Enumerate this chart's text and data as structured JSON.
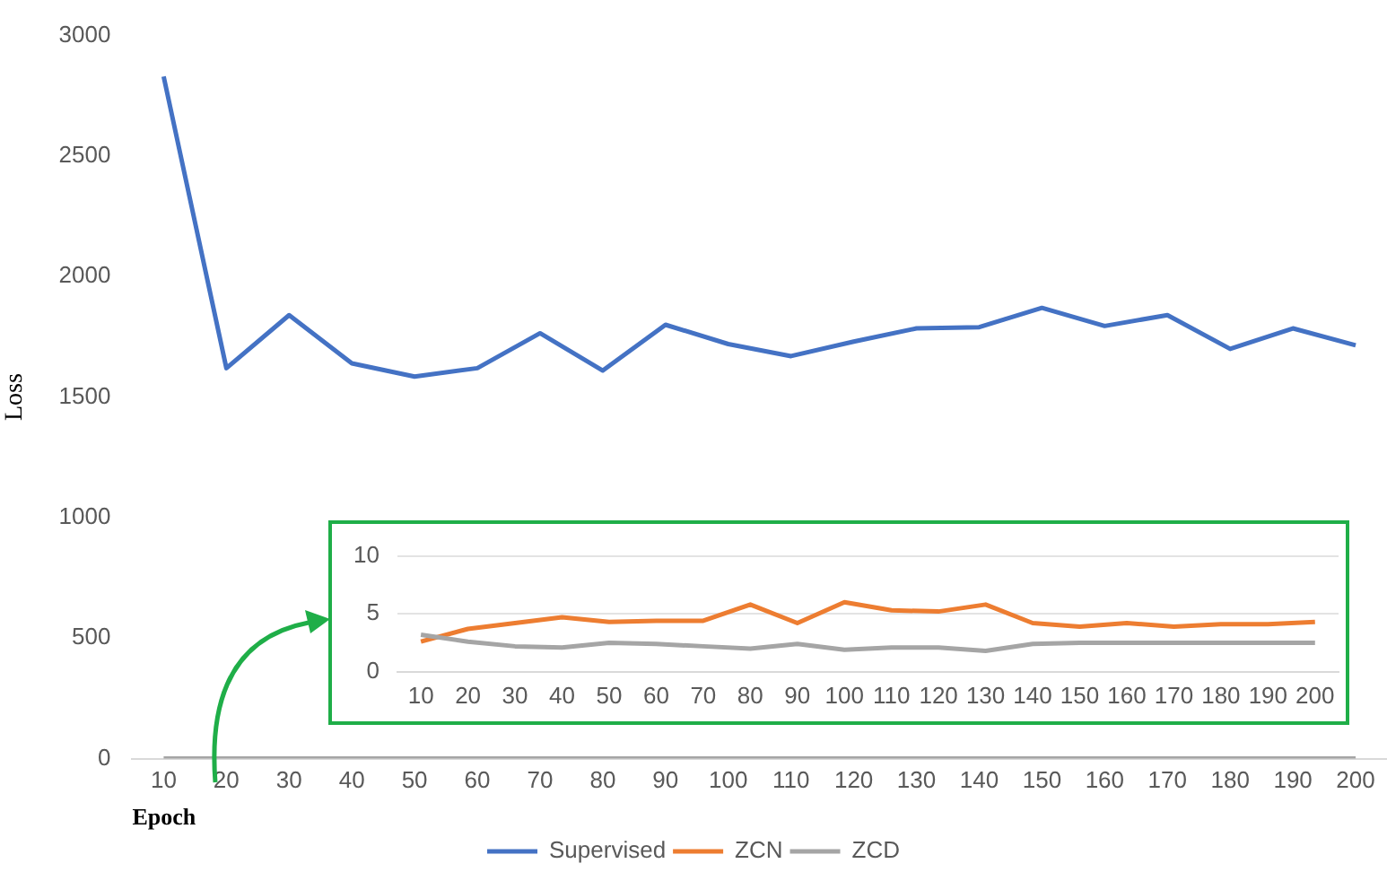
{
  "chart_data": [
    {
      "type": "line",
      "ylabel": "Loss",
      "xlabel": "Epoch",
      "categories": [
        "10",
        "20",
        "30",
        "40",
        "50",
        "60",
        "70",
        "80",
        "90",
        "100",
        "110",
        "120",
        "130",
        "140",
        "150",
        "160",
        "170",
        "180",
        "190",
        "200"
      ],
      "series": [
        {
          "name": "Supervised",
          "color": "#4472c4",
          "values": [
            2830,
            1620,
            1840,
            1640,
            1585,
            1620,
            1765,
            1610,
            1800,
            1720,
            1670,
            1730,
            1785,
            1790,
            1870,
            1795,
            1840,
            1700,
            1785,
            1715
          ]
        },
        {
          "name": "ZCN",
          "color": "#ed7d31",
          "values": [
            null,
            null,
            null,
            null,
            null,
            null,
            null,
            null,
            null,
            null,
            null,
            null,
            null,
            null,
            null,
            null,
            null,
            null,
            null,
            null
          ]
        },
        {
          "name": "ZCD",
          "color": "#a5a5a5",
          "values": [
            0,
            0,
            0,
            0,
            0,
            0,
            0,
            0,
            0,
            0,
            0,
            0,
            0,
            0,
            0,
            0,
            0,
            0,
            0,
            0
          ]
        }
      ],
      "ylim": [
        0,
        3000
      ],
      "yticks": [
        0,
        500,
        1000,
        1500,
        2000,
        2500,
        3000
      ],
      "grid": false,
      "legend": "bottom",
      "marker": "none",
      "line_style": "solid"
    },
    {
      "type": "line",
      "categories": [
        "10",
        "20",
        "30",
        "40",
        "50",
        "60",
        "70",
        "80",
        "90",
        "100",
        "110",
        "120",
        "130",
        "140",
        "150",
        "160",
        "170",
        "180",
        "190",
        "200"
      ],
      "series": [
        {
          "color": "#ed7d31",
          "values": [
            2.6,
            3.7,
            4.2,
            4.7,
            4.3,
            4.4,
            4.4,
            5.8,
            4.2,
            6.0,
            5.3,
            5.2,
            5.8,
            4.2,
            3.9,
            4.2,
            3.9,
            4.1,
            4.1,
            4.3
          ]
        },
        {
          "color": "#a5a5a5",
          "values": [
            3.2,
            2.6,
            2.2,
            2.1,
            2.5,
            2.4,
            2.2,
            2.0,
            2.4,
            1.9,
            2.1,
            2.1,
            1.8,
            2.4,
            2.5,
            2.5,
            2.5,
            2.5,
            2.5,
            2.5
          ]
        }
      ],
      "ylim": [
        0,
        10
      ],
      "yticks": [
        0,
        5,
        10
      ],
      "grid": "y",
      "marker": "none",
      "line_style": "solid"
    }
  ]
}
